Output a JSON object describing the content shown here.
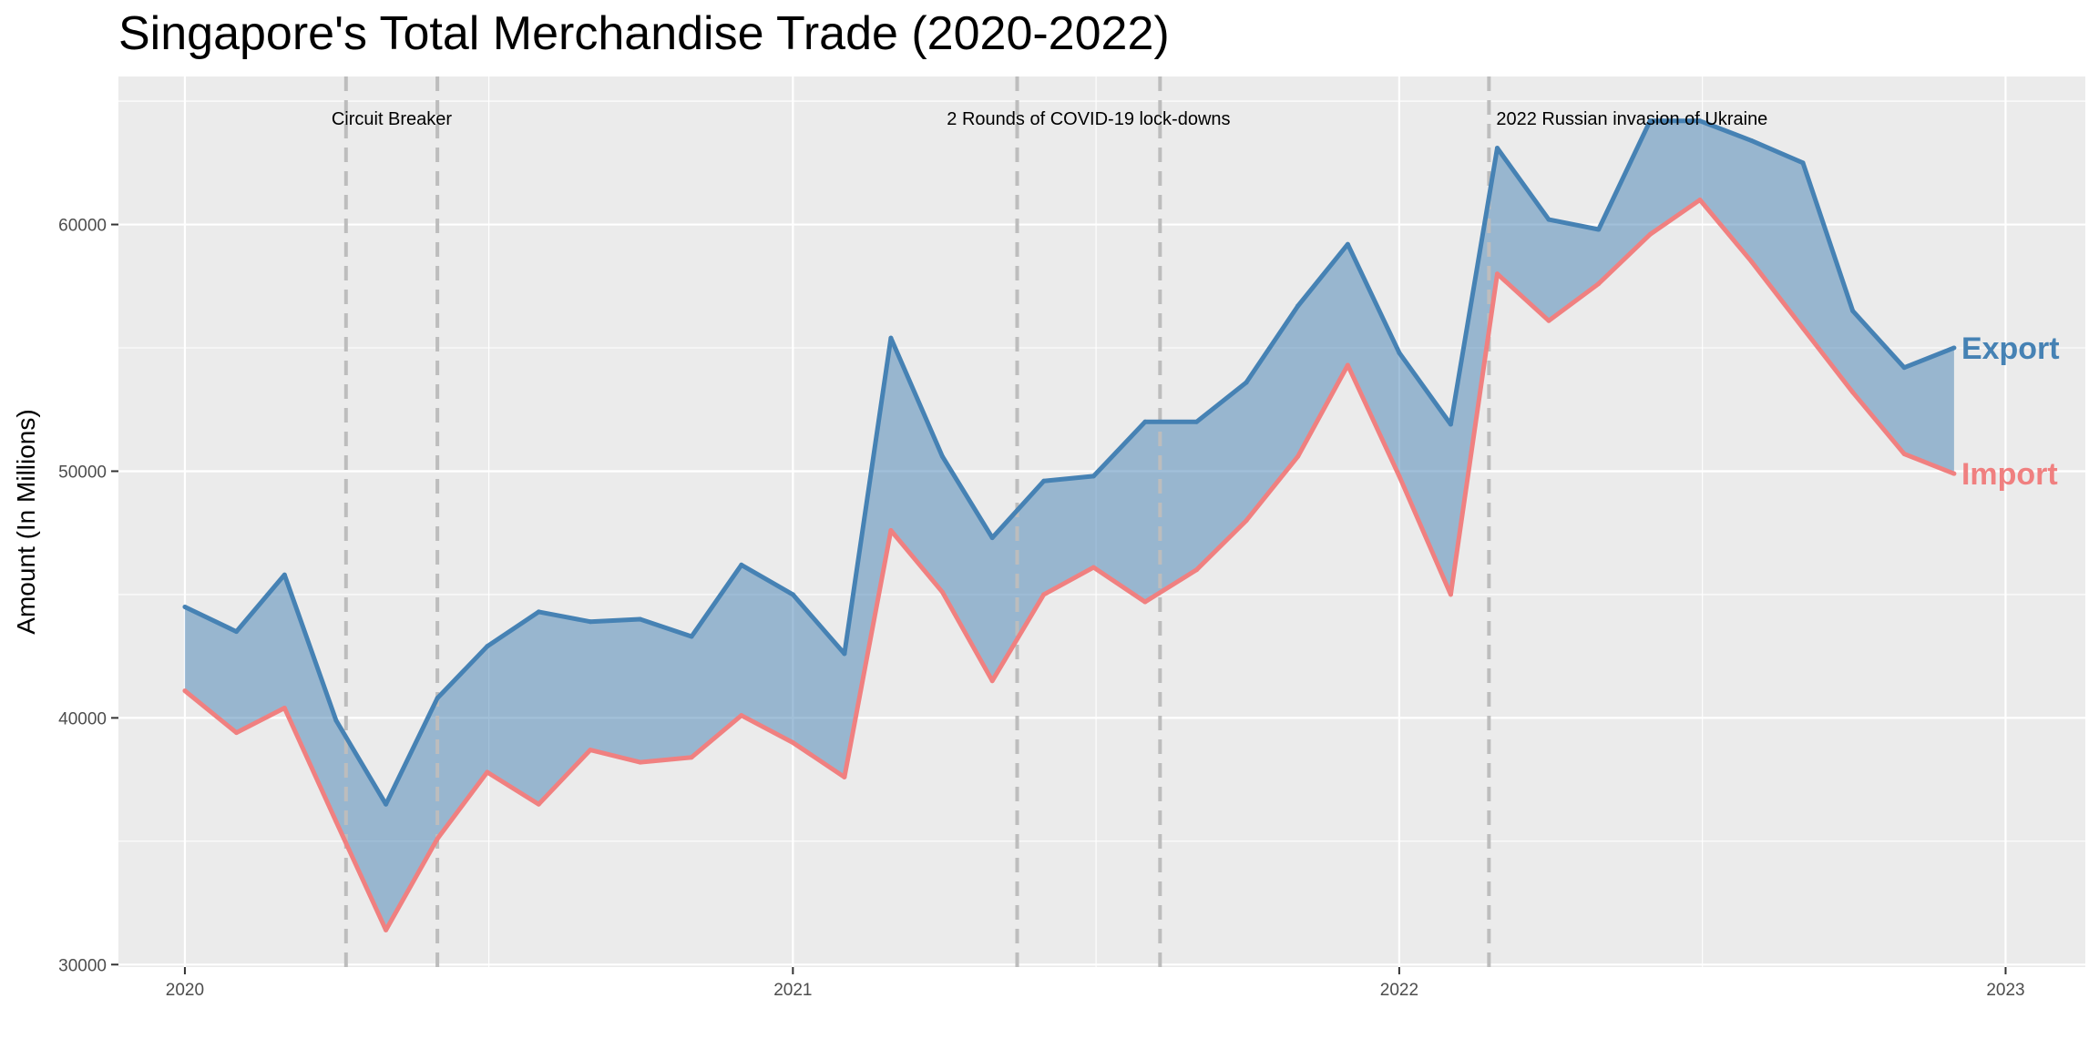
{
  "chart_data": {
    "type": "area",
    "title": "Singapore's Total Merchandise Trade (2020-2022)",
    "xlabel": "",
    "ylabel": "Amount (In Millions)",
    "ylim": [
      29900,
      66000
    ],
    "xlim": [
      "2019-11-22",
      "2023-02-18"
    ],
    "x_ticks": [
      "2020-01-01",
      "2021-01-01",
      "2022-01-01",
      "2023-01-01"
    ],
    "x_tick_labels": [
      "2020",
      "2021",
      "2022",
      "2023"
    ],
    "y_ticks": [
      30000,
      40000,
      50000,
      60000
    ],
    "y_tick_labels": [
      "30000",
      "40000",
      "50000",
      "60000"
    ],
    "grid": true,
    "background": "#EBEBEB",
    "x": [
      "2020-01-01",
      "2020-02-01",
      "2020-03-01",
      "2020-04-01",
      "2020-05-01",
      "2020-06-01",
      "2020-07-01",
      "2020-08-01",
      "2020-09-01",
      "2020-10-01",
      "2020-11-01",
      "2020-12-01",
      "2021-01-01",
      "2021-02-01",
      "2021-03-01",
      "2021-04-01",
      "2021-05-01",
      "2021-06-01",
      "2021-07-01",
      "2021-08-01",
      "2021-09-01",
      "2021-10-01",
      "2021-11-01",
      "2021-12-01",
      "2022-01-01",
      "2022-02-01",
      "2022-03-01",
      "2022-04-01",
      "2022-05-01",
      "2022-06-01",
      "2022-07-01",
      "2022-08-01",
      "2022-09-01",
      "2022-10-01",
      "2022-11-01",
      "2022-12-01"
    ],
    "series": [
      {
        "name": "Export",
        "color": "#4682B4",
        "values": [
          44500,
          43500,
          45800,
          39900,
          36500,
          40800,
          42900,
          44300,
          43900,
          44000,
          43300,
          46200,
          45000,
          42600,
          55400,
          50600,
          47300,
          49600,
          49800,
          52000,
          52000,
          53600,
          56700,
          59200,
          54800,
          51900,
          63100,
          60200,
          59800,
          64200,
          64200,
          63400,
          62500,
          56500,
          54200,
          55000
        ]
      },
      {
        "name": "Import",
        "color": "#F08080",
        "values": [
          41100,
          39400,
          40400,
          35800,
          31400,
          35100,
          37800,
          36500,
          38700,
          38200,
          38400,
          40100,
          39000,
          37600,
          47600,
          45100,
          41500,
          45000,
          46100,
          44700,
          46000,
          48000,
          50600,
          54300,
          49800,
          45000,
          58000,
          56100,
          57600,
          59600,
          61000,
          58500,
          55800,
          53200,
          50700,
          49900
        ]
      }
    ],
    "fill_color": "#4682B4",
    "fill_between": [
      "Export",
      "Import"
    ],
    "annotations": [
      {
        "label": "Circuit Breaker",
        "lines": [
          "2020-04-07",
          "2020-06-01"
        ]
      },
      {
        "label": "2 Rounds of COVID-19 lock-downs",
        "lines": [
          "2021-05-16",
          "2021-08-10"
        ]
      },
      {
        "label": "2022 Russian invasion of Ukraine",
        "lines": [
          "2022-02-24"
        ]
      }
    ],
    "legend": "direct labels at line ends"
  }
}
